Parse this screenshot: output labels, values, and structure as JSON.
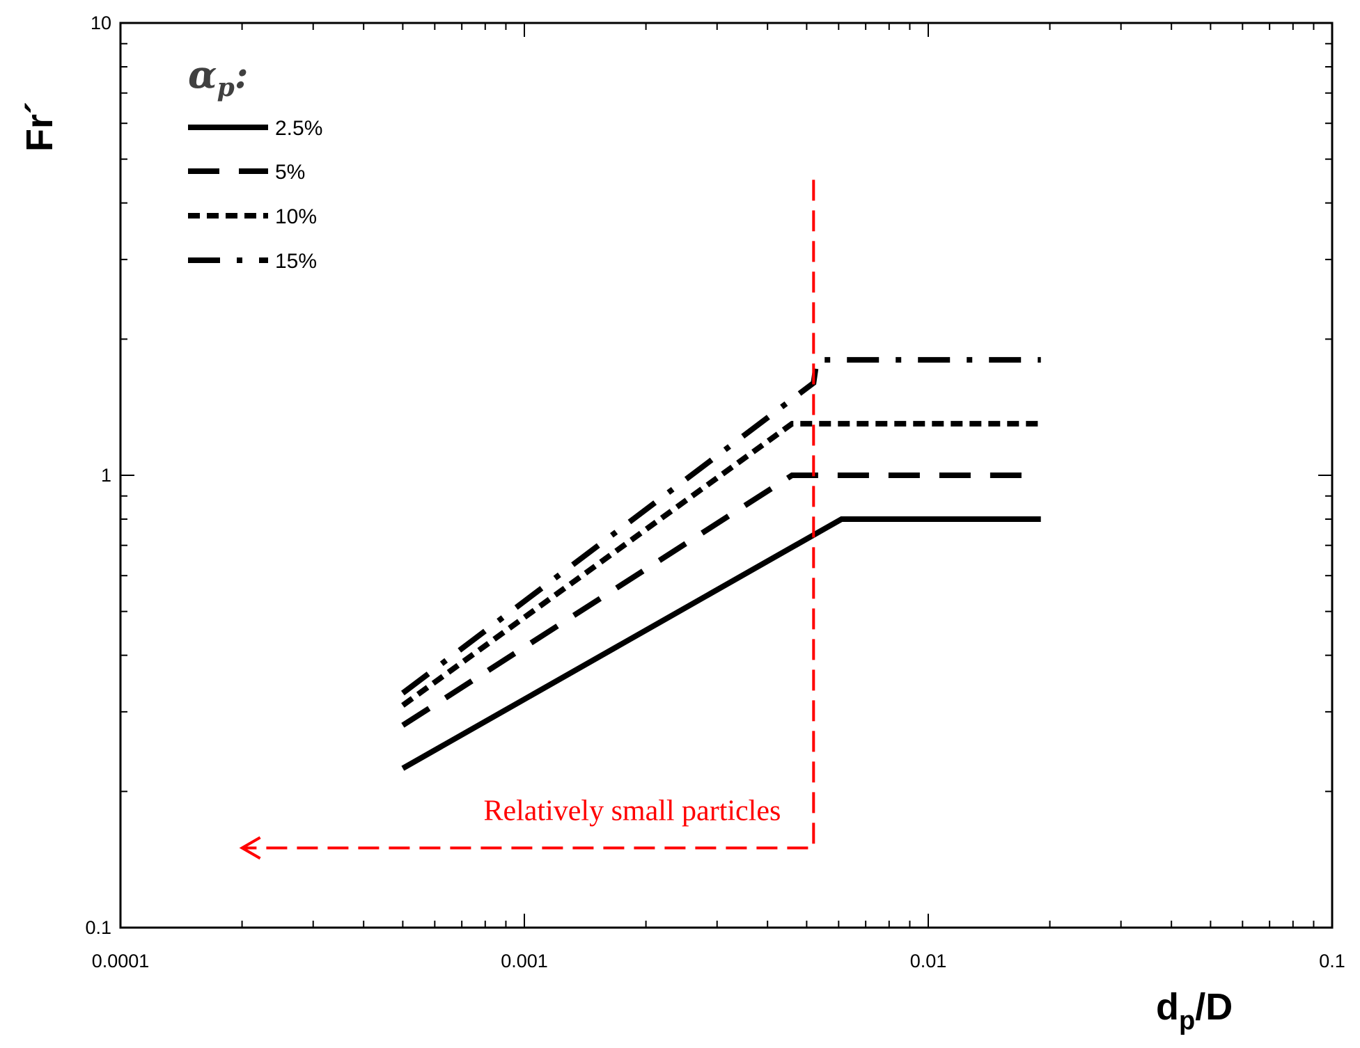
{
  "chart_data": {
    "type": "line",
    "xscale": "log",
    "yscale": "log",
    "xlim": [
      0.0001,
      0.1
    ],
    "ylim": [
      0.1,
      10
    ],
    "x_ticks": [
      "0.0001",
      "0.001",
      "0.01",
      "0.1"
    ],
    "y_ticks": [
      "0.1",
      "1",
      "10"
    ],
    "xlabel_main": "d",
    "xlabel_sub": "p",
    "xlabel_rest": "/D",
    "ylabel": "Fr´",
    "legend_title_main": "α",
    "legend_title_sub": "p",
    "legend_title_colon": ":",
    "legend_position": "top-left",
    "grid": false,
    "series": [
      {
        "name": "2.5%",
        "style": "solid",
        "points": [
          [
            0.0005,
            0.225
          ],
          [
            0.0061,
            0.8
          ],
          [
            0.019,
            0.8
          ]
        ]
      },
      {
        "name": "5%",
        "style": "long-dash",
        "points": [
          [
            0.0005,
            0.28
          ],
          [
            0.0046,
            1.0
          ],
          [
            0.019,
            1.0
          ]
        ]
      },
      {
        "name": "10%",
        "style": "short-dash",
        "points": [
          [
            0.0005,
            0.31
          ],
          [
            0.0046,
            1.3
          ],
          [
            0.019,
            1.3
          ]
        ]
      },
      {
        "name": "15%",
        "style": "dash-dot",
        "points": [
          [
            0.0005,
            0.33
          ],
          [
            0.0052,
            1.6
          ],
          [
            0.0053,
            1.8
          ],
          [
            0.019,
            1.8
          ]
        ]
      }
    ],
    "annotation": {
      "text": "Relatively small particles",
      "color": "#ff0000",
      "boundary_x": 0.0052,
      "boundary_y_top": 4.5,
      "arrow_y": 0.15,
      "arrow_x_end": 0.0002
    }
  }
}
